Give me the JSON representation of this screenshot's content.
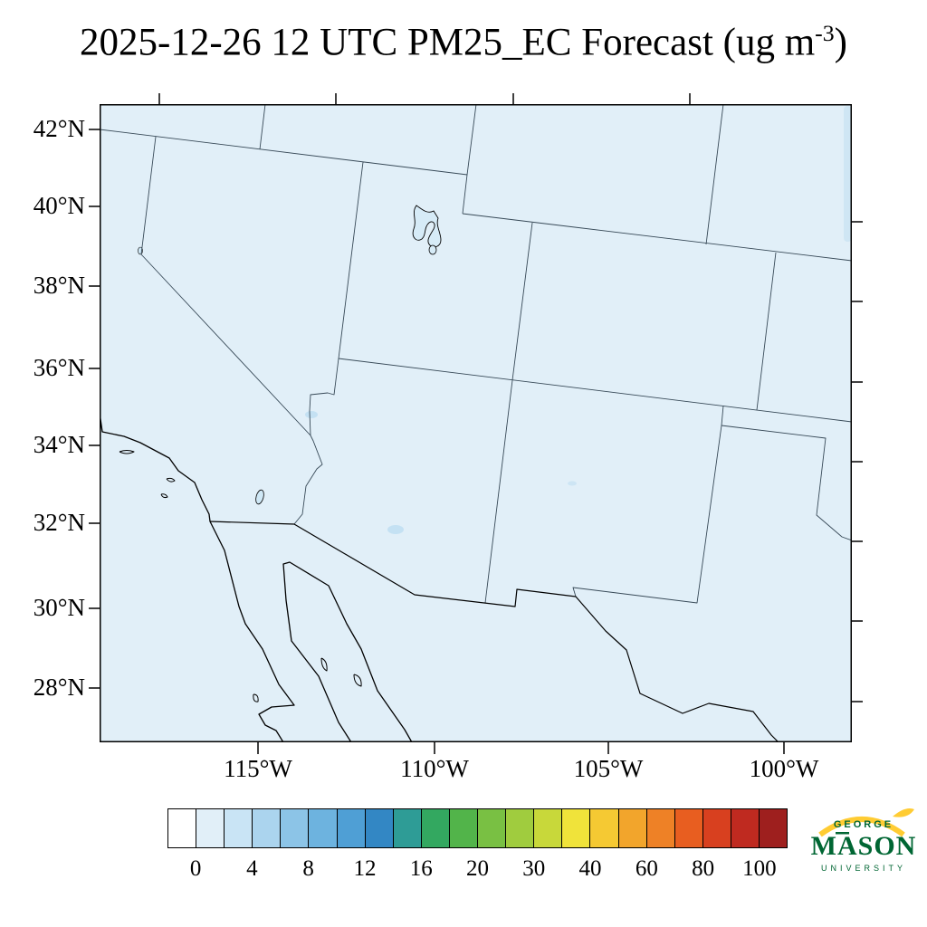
{
  "title": {
    "prefix": "2025-12-26 12 UTC PM25_EC Forecast (ug m",
    "superscript": "-3",
    "suffix": ")"
  },
  "axes": {
    "lat_ticks": [
      "42°N",
      "40°N",
      "38°N",
      "36°N",
      "34°N",
      "32°N",
      "30°N",
      "28°N"
    ],
    "lon_ticks": [
      "115°W",
      "110°W",
      "105°W",
      "100°W"
    ]
  },
  "colorbar": {
    "labels": [
      "0",
      "4",
      "8",
      "12",
      "16",
      "20",
      "30",
      "40",
      "60",
      "80",
      "100"
    ],
    "colors": [
      "#ffffff",
      "#e1eff8",
      "#c9e4f5",
      "#abd4ee",
      "#8cc4e7",
      "#6db3df",
      "#4f9fd5",
      "#3387c4",
      "#2e9c96",
      "#33a860",
      "#52b44a",
      "#79c043",
      "#a0cc3e",
      "#c8d83a",
      "#f0e33a",
      "#f5c933",
      "#f2a52c",
      "#ee8126",
      "#e85e20",
      "#d8401f",
      "#bf2a20",
      "#9e1f1e"
    ]
  },
  "field": {
    "background": "#e1eff8",
    "patch": "#c4e1f3",
    "lake": "#d6ebf7"
  },
  "logo": {
    "top": "GEORGE",
    "name": "MASON",
    "bottom": "UNIVERSITY",
    "green": "#006633",
    "gold": "#ffcc33"
  }
}
